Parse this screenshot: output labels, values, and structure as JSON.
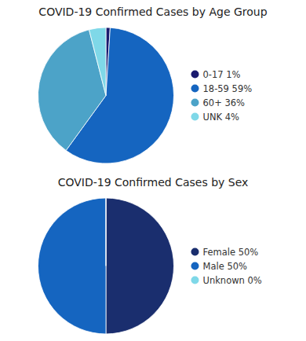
{
  "chart_data": [
    {
      "type": "pie",
      "title": "COVID-19 Confirmed Cases by Age Group",
      "categories": [
        "0-17 1%",
        "18-59 59%",
        "60+ 36%",
        "UNK 4%"
      ],
      "values": [
        1,
        59,
        36,
        4
      ],
      "colors": [
        "#1a1a6e",
        "#1565c0",
        "#4ca3c8",
        "#7fd8e8"
      ],
      "legend": "right"
    },
    {
      "type": "pie",
      "title": "COVID-19 Confirmed Cases by Sex",
      "categories": [
        "Female 50%",
        "Male 50%",
        "Unknown 0%"
      ],
      "values": [
        50,
        50,
        0.001
      ],
      "colors": [
        "#1a2e6e",
        "#1565c0",
        "#7fd8e8"
      ],
      "legend": "right"
    }
  ]
}
